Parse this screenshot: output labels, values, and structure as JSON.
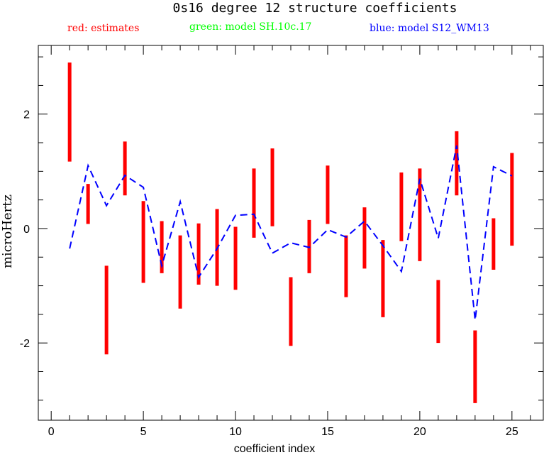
{
  "chart_data": {
    "type": "errorbar",
    "title": "0s16 degree 12 structure coefficients",
    "legend": [
      {
        "label": "red: estimates",
        "color": "#ff0000"
      },
      {
        "label": "green: model SH.10c.17",
        "color": "#00ff00"
      },
      {
        "label": "blue: model S12_WM13",
        "color": "#0000ff"
      }
    ],
    "xlabel": "coefficient index",
    "ylabel": "microHertz",
    "xlim": [
      -0.7,
      26.7
    ],
    "ylim": [
      -3.35,
      3.2
    ],
    "xticks": [
      0,
      5,
      10,
      15,
      20,
      25
    ],
    "xtick_labels": [
      "0",
      "5",
      "10",
      "15",
      "20",
      "25"
    ],
    "yticks": [
      -2,
      0,
      2
    ],
    "ytick_labels": [
      "-2",
      "0",
      "2"
    ],
    "x_minor_step": 1,
    "y_minor_step": 0.5,
    "grid": false,
    "series": [
      {
        "name": "estimates",
        "color": "#ff0000",
        "style": "vertical-bars",
        "x": [
          1,
          2,
          3,
          4,
          5,
          6,
          7,
          8,
          9,
          10,
          11,
          12,
          13,
          14,
          15,
          16,
          17,
          18,
          19,
          20,
          21,
          22,
          23,
          24,
          25
        ],
        "low": [
          1.17,
          0.08,
          -2.2,
          0.58,
          -0.95,
          -0.78,
          -1.4,
          -0.98,
          -1.0,
          -1.07,
          -0.16,
          0.04,
          -2.05,
          -0.78,
          0.08,
          -1.2,
          -0.7,
          -1.55,
          -0.22,
          -0.57,
          -2.0,
          0.58,
          -3.05,
          -0.72,
          -0.3
        ],
        "high": [
          2.9,
          0.78,
          -0.65,
          1.52,
          0.48,
          0.13,
          -0.12,
          0.09,
          0.34,
          0.03,
          1.05,
          1.4,
          -0.85,
          0.15,
          1.1,
          -0.12,
          0.37,
          -0.2,
          0.98,
          1.05,
          -0.9,
          1.7,
          -1.78,
          0.18,
          1.32
        ]
      },
      {
        "name": "model S12_WM13",
        "color": "#0000ff",
        "style": "dashed-line",
        "x": [
          1,
          2,
          3,
          4,
          5,
          6,
          7,
          8,
          9,
          10,
          11,
          12,
          13,
          14,
          15,
          16,
          17,
          18,
          19,
          20,
          21,
          22,
          23,
          24,
          25
        ],
        "values": [
          -0.35,
          1.1,
          0.4,
          0.93,
          0.72,
          -0.65,
          0.47,
          -0.85,
          -0.35,
          0.23,
          0.25,
          -0.43,
          -0.25,
          -0.33,
          -0.02,
          -0.15,
          0.13,
          -0.3,
          -0.75,
          0.87,
          -0.17,
          1.45,
          -1.6,
          1.08,
          0.92
        ]
      }
    ]
  }
}
